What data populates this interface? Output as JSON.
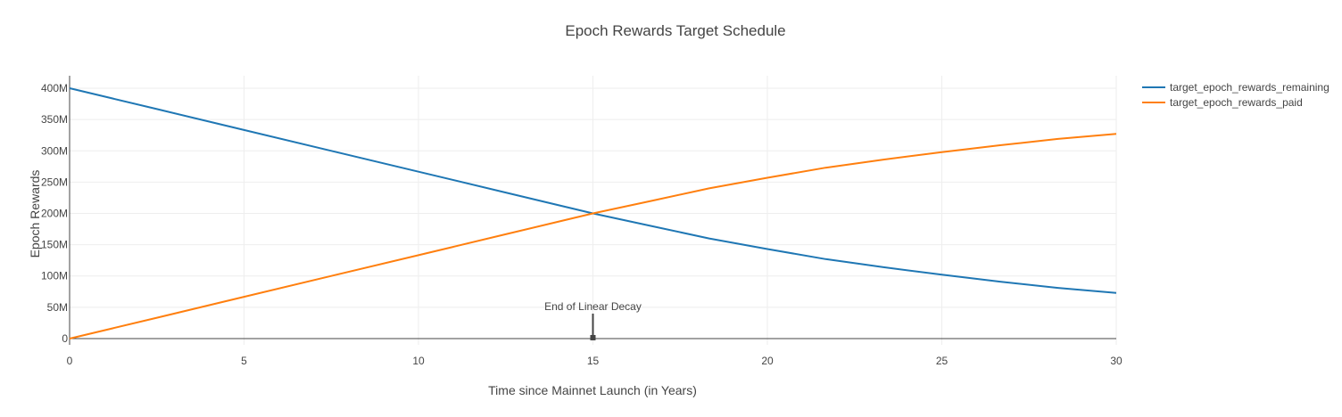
{
  "chart_data": {
    "type": "line",
    "title": "Epoch Rewards Target Schedule",
    "xlabel": "Time since Mainnet Launch (in Years)",
    "ylabel": "Epoch Rewards",
    "xlim": [
      0,
      30
    ],
    "ylim": [
      -10000000,
      420000000
    ],
    "x_ticks": [
      0,
      5,
      10,
      15,
      20,
      25,
      30
    ],
    "x_tick_labels": [
      "0",
      "5",
      "10",
      "15",
      "20",
      "25",
      "30"
    ],
    "y_ticks": [
      0,
      50000000,
      100000000,
      150000000,
      200000000,
      250000000,
      300000000,
      350000000,
      400000000
    ],
    "y_tick_labels": [
      "0",
      "50M",
      "100M",
      "150M",
      "200M",
      "250M",
      "300M",
      "350M",
      "400M"
    ],
    "grid": true,
    "legend_position": "top-right",
    "series": [
      {
        "name": "target_epoch_rewards_remaining",
        "color": "#1f77b4",
        "x": [
          0,
          2.5,
          5,
          7.5,
          10,
          12.5,
          15,
          16.67,
          18.33,
          20,
          21.67,
          23.33,
          25,
          26.67,
          28.33,
          30
        ],
        "values": [
          400000000,
          366700000,
          333300000,
          300000000,
          266700000,
          233300000,
          200000000,
          180000000,
          160000000,
          143000000,
          127000000,
          114000000,
          102000000,
          91000000,
          81000000,
          73000000
        ]
      },
      {
        "name": "target_epoch_rewards_paid",
        "color": "#ff7f0e",
        "x": [
          0,
          2.5,
          5,
          7.5,
          10,
          12.5,
          15,
          16.67,
          18.33,
          20,
          21.67,
          23.33,
          25,
          26.67,
          28.33,
          30
        ],
        "values": [
          0,
          33300000,
          66700000,
          100000000,
          133300000,
          166700000,
          200000000,
          220000000,
          240000000,
          257000000,
          273000000,
          286000000,
          298000000,
          309000000,
          319000000,
          327000000
        ]
      }
    ],
    "annotations": [
      {
        "text": "End of Linear Decay",
        "x": 15,
        "y": 0,
        "arrow": true
      }
    ]
  }
}
